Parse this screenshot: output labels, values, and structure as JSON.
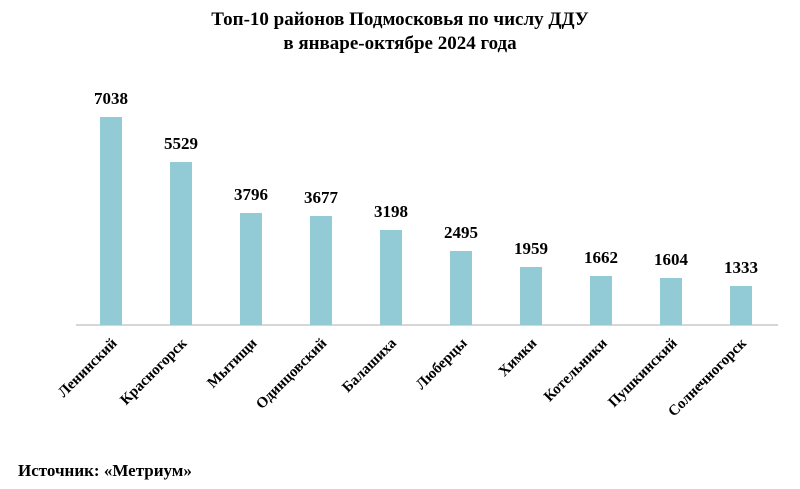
{
  "title": {
    "line1": "Топ-10 районов Подмосковья по числу ДДУ",
    "line2": "в январе-октябре 2024 года"
  },
  "source": "Источник: «Метриум»",
  "colors": {
    "bar": "#92cbd5",
    "axis": "#d6d6d6",
    "text": "#000000"
  },
  "chart_data": {
    "type": "bar",
    "title": "Топ-10 районов Подмосковья по числу ДДУ в январе-октябре 2024 года",
    "xlabel": "",
    "ylabel": "",
    "categories": [
      "Ленинский",
      "Красногорск",
      "Мытищи",
      "Одинцовский",
      "Балашиха",
      "Люберцы",
      "Химки",
      "Котельники",
      "Пушкинский",
      "Солнечногорск"
    ],
    "values": [
      7038,
      5529,
      3796,
      3677,
      3198,
      2495,
      1959,
      1662,
      1604,
      1333
    ],
    "value_labels": [
      "7038",
      "5529",
      "3796",
      "3677",
      "3198",
      "2495",
      "1959",
      "1662",
      "1604",
      "1333"
    ],
    "ylim": [
      0,
      7038
    ],
    "grid": false,
    "legend": null,
    "data_labels": true,
    "x_tick_rotation": -45,
    "source": "Источник: «Метриум»"
  }
}
